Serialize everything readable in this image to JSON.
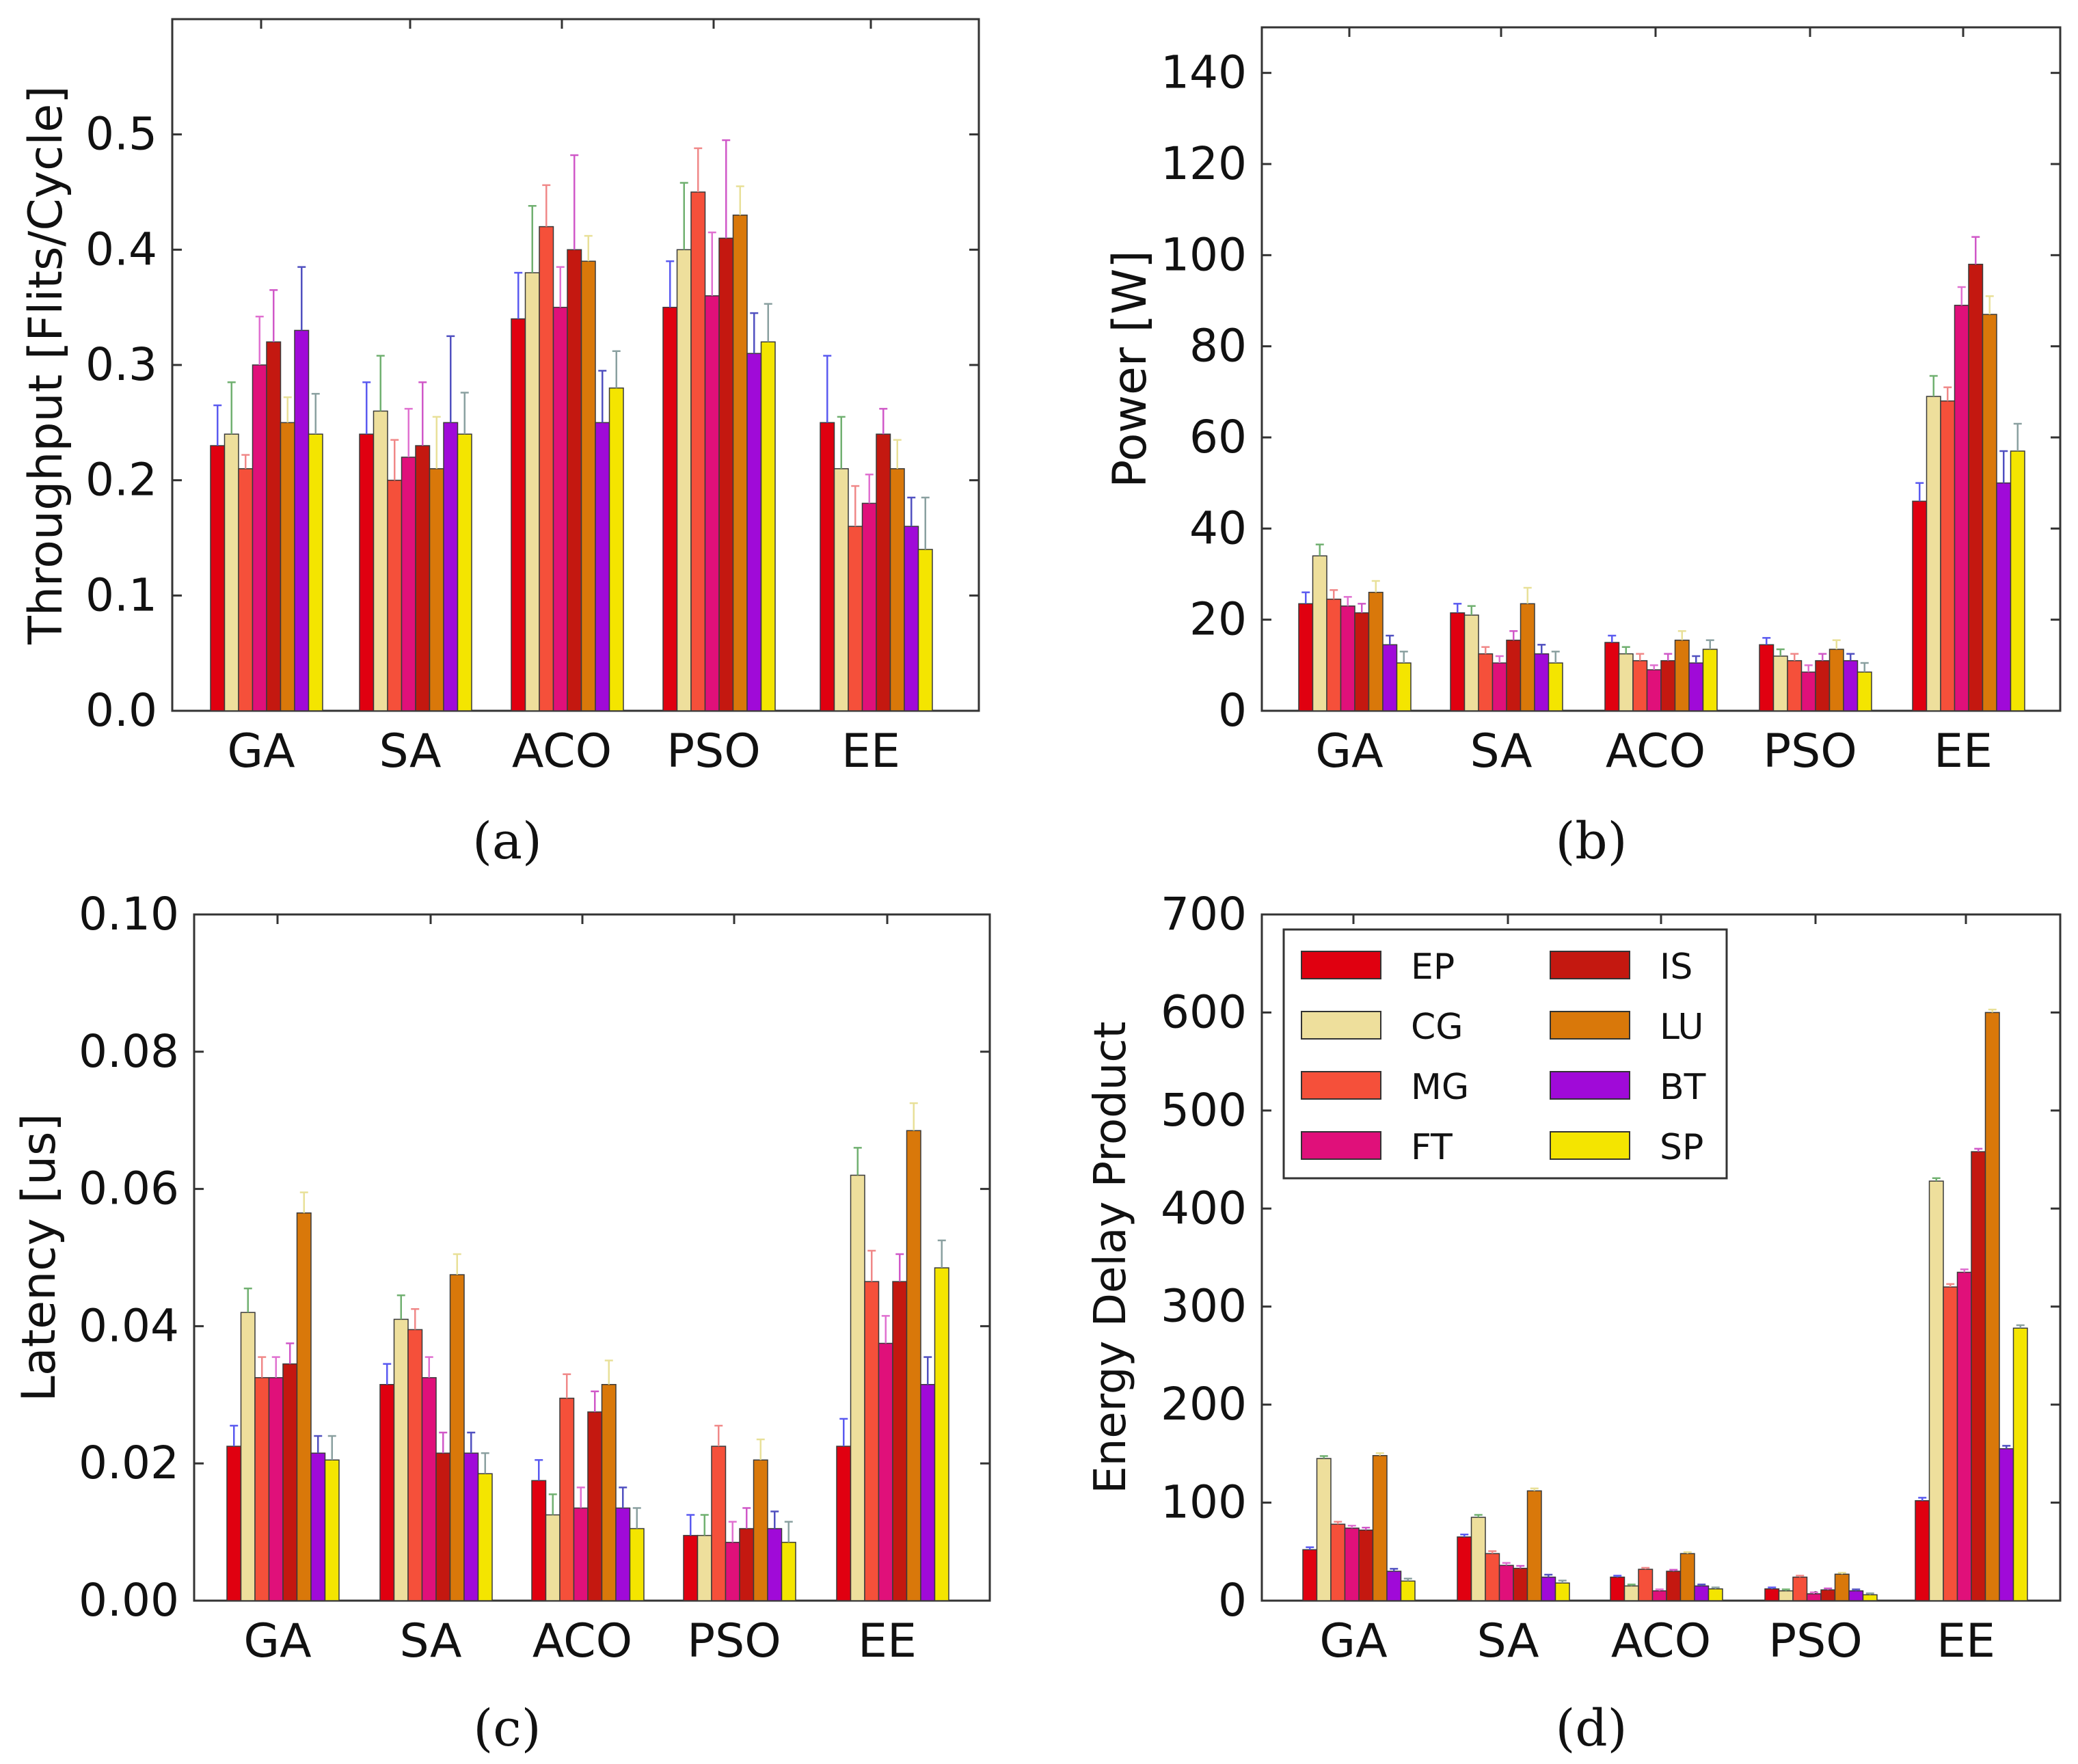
{
  "figure": {
    "panels": [
      "(a)",
      "(b)",
      "(c)",
      "(d)"
    ]
  },
  "colors": {
    "EP": "#e00010",
    "CG": "#eedf9c",
    "MG": "#f5503a",
    "FT": "#e0107a",
    "IS": "#c41810",
    "LU": "#d9780a",
    "BT": "#a00ad8",
    "SP": "#f4e500"
  },
  "chart_data": [
    {
      "type": "bar",
      "panel_label": "(a)",
      "title": "",
      "xlabel": "",
      "ylabel": "Throughput [Flits/Cycle]",
      "categories": [
        "GA",
        "SA",
        "ACO",
        "PSO",
        "EE"
      ],
      "ylim": [
        0,
        0.6
      ],
      "yticks": [
        "0.0",
        "0.1",
        "0.2",
        "0.3",
        "0.4",
        "0.5"
      ],
      "legend": null,
      "series": [
        {
          "name": "EP",
          "values": [
            0.23,
            0.24,
            0.34,
            0.35,
            0.25
          ],
          "errors": [
            0.035,
            0.045,
            0.04,
            0.04,
            0.058
          ]
        },
        {
          "name": "CG",
          "values": [
            0.24,
            0.26,
            0.38,
            0.4,
            0.21
          ],
          "errors": [
            0.045,
            0.048,
            0.058,
            0.058,
            0.045
          ]
        },
        {
          "name": "MG",
          "values": [
            0.21,
            0.2,
            0.42,
            0.45,
            0.16
          ],
          "errors": [
            0.012,
            0.035,
            0.036,
            0.038,
            0.035
          ]
        },
        {
          "name": "FT",
          "values": [
            0.3,
            0.22,
            0.35,
            0.36,
            0.18
          ],
          "errors": [
            0.042,
            0.042,
            0.035,
            0.055,
            0.025
          ]
        },
        {
          "name": "IS",
          "values": [
            0.32,
            0.23,
            0.4,
            0.41,
            0.24
          ],
          "errors": [
            0.045,
            0.055,
            0.082,
            0.085,
            0.022
          ]
        },
        {
          "name": "LU",
          "values": [
            0.25,
            0.21,
            0.39,
            0.43,
            0.21
          ],
          "errors": [
            0.022,
            0.045,
            0.022,
            0.025,
            0.025
          ]
        },
        {
          "name": "BT",
          "values": [
            0.33,
            0.25,
            0.25,
            0.31,
            0.16
          ],
          "errors": [
            0.055,
            0.075,
            0.045,
            0.035,
            0.025
          ]
        },
        {
          "name": "SP",
          "values": [
            0.24,
            0.24,
            0.28,
            0.32,
            0.14
          ],
          "errors": [
            0.035,
            0.036,
            0.032,
            0.033,
            0.045
          ]
        }
      ]
    },
    {
      "type": "bar",
      "panel_label": "(b)",
      "title": "",
      "xlabel": "",
      "ylabel": "Power [W]",
      "categories": [
        "GA",
        "SA",
        "ACO",
        "PSO",
        "EE"
      ],
      "ylim": [
        0,
        150
      ],
      "yticks": [
        "0",
        "20",
        "40",
        "60",
        "80",
        "100",
        "120",
        "140"
      ],
      "legend": null,
      "series": [
        {
          "name": "EP",
          "values": [
            23.5,
            21.5,
            15,
            14.5,
            46
          ],
          "errors": [
            2.5,
            2.0,
            1.5,
            1.5,
            4.0
          ]
        },
        {
          "name": "CG",
          "values": [
            34,
            21,
            12.5,
            12,
            69
          ],
          "errors": [
            2.5,
            2.0,
            1.5,
            1.5,
            4.5
          ]
        },
        {
          "name": "MG",
          "values": [
            24.5,
            12.5,
            11,
            11,
            68
          ],
          "errors": [
            2.0,
            1.5,
            1.5,
            1.5,
            3.0
          ]
        },
        {
          "name": "FT",
          "values": [
            23,
            10.5,
            9,
            8.5,
            89
          ],
          "errors": [
            2.0,
            1.5,
            1.0,
            1.5,
            4.0
          ]
        },
        {
          "name": "IS",
          "values": [
            21.5,
            15.5,
            11,
            11,
            98
          ],
          "errors": [
            2.0,
            2.0,
            1.5,
            1.5,
            6.0
          ]
        },
        {
          "name": "LU",
          "values": [
            26,
            23.5,
            15.5,
            13.5,
            87
          ],
          "errors": [
            2.5,
            3.5,
            2.0,
            2.0,
            4.0
          ]
        },
        {
          "name": "BT",
          "values": [
            14.5,
            12.5,
            10.5,
            11,
            50
          ],
          "errors": [
            2.0,
            2.0,
            1.5,
            1.5,
            7.0
          ]
        },
        {
          "name": "SP",
          "values": [
            10.5,
            10.5,
            13.5,
            8.5,
            57
          ],
          "errors": [
            2.5,
            2.5,
            2.0,
            2.0,
            6.0
          ]
        }
      ]
    },
    {
      "type": "bar",
      "panel_label": "(c)",
      "title": "",
      "xlabel": "",
      "ylabel": "Latency [us]",
      "categories": [
        "GA",
        "SA",
        "ACO",
        "PSO",
        "EE"
      ],
      "ylim": [
        0,
        0.1
      ],
      "yticks": [
        "0.00",
        "0.02",
        "0.04",
        "0.06",
        "0.08",
        "0.10"
      ],
      "legend": null,
      "series": [
        {
          "name": "EP",
          "values": [
            0.0225,
            0.0315,
            0.0175,
            0.0095,
            0.0225
          ],
          "errors": [
            0.003,
            0.003,
            0.003,
            0.003,
            0.004
          ]
        },
        {
          "name": "CG",
          "values": [
            0.042,
            0.041,
            0.0125,
            0.0095,
            0.062
          ],
          "errors": [
            0.0035,
            0.0035,
            0.003,
            0.003,
            0.004
          ]
        },
        {
          "name": "MG",
          "values": [
            0.0325,
            0.0395,
            0.0295,
            0.0225,
            0.0465
          ],
          "errors": [
            0.003,
            0.003,
            0.0035,
            0.003,
            0.0045
          ]
        },
        {
          "name": "FT",
          "values": [
            0.0325,
            0.0325,
            0.0135,
            0.0085,
            0.0375
          ],
          "errors": [
            0.003,
            0.003,
            0.003,
            0.003,
            0.004
          ]
        },
        {
          "name": "IS",
          "values": [
            0.0345,
            0.0215,
            0.0275,
            0.0105,
            0.0465
          ],
          "errors": [
            0.003,
            0.003,
            0.003,
            0.003,
            0.004
          ]
        },
        {
          "name": "LU",
          "values": [
            0.0565,
            0.0475,
            0.0315,
            0.0205,
            0.0685
          ],
          "errors": [
            0.003,
            0.003,
            0.0035,
            0.003,
            0.004
          ]
        },
        {
          "name": "BT",
          "values": [
            0.0215,
            0.0215,
            0.0135,
            0.0105,
            0.0315
          ],
          "errors": [
            0.0025,
            0.003,
            0.003,
            0.0025,
            0.004
          ]
        },
        {
          "name": "SP",
          "values": [
            0.0205,
            0.0185,
            0.0105,
            0.0085,
            0.0485
          ],
          "errors": [
            0.0035,
            0.003,
            0.003,
            0.003,
            0.004
          ]
        }
      ]
    },
    {
      "type": "bar",
      "panel_label": "(d)",
      "title": "",
      "xlabel": "",
      "ylabel": "Energy Delay Product",
      "categories": [
        "GA",
        "SA",
        "ACO",
        "PSO",
        "EE"
      ],
      "ylim": [
        0,
        700
      ],
      "yticks": [
        "0",
        "100",
        "200",
        "300",
        "400",
        "500",
        "600",
        "700"
      ],
      "legend": {
        "position": "upper-left",
        "columns": 2,
        "entries": [
          "EP",
          "CG",
          "MG",
          "FT",
          "IS",
          "LU",
          "BT",
          "SP"
        ]
      },
      "series": [
        {
          "name": "EP",
          "values": [
            52,
            65,
            24,
            12,
            102
          ],
          "errors": [
            2.5,
            2.5,
            1.5,
            1.5,
            3.0
          ]
        },
        {
          "name": "CG",
          "values": [
            145,
            85,
            15,
            10,
            428
          ],
          "errors": [
            2.5,
            2.5,
            1.5,
            1.5,
            3.0
          ]
        },
        {
          "name": "MG",
          "values": [
            78,
            48,
            32,
            24,
            320
          ],
          "errors": [
            2.5,
            2.5,
            1.5,
            1.5,
            3.0
          ]
        },
        {
          "name": "FT",
          "values": [
            74,
            36,
            10,
            7,
            335
          ],
          "errors": [
            2.5,
            2.5,
            1.5,
            1.5,
            3.0
          ]
        },
        {
          "name": "IS",
          "values": [
            72,
            33,
            30,
            11,
            458
          ],
          "errors": [
            2.5,
            2.5,
            1.5,
            1.5,
            3.0
          ]
        },
        {
          "name": "LU",
          "values": [
            148,
            112,
            48,
            27,
            600
          ],
          "errors": [
            2.5,
            2.5,
            1.5,
            1.5,
            3.0
          ]
        },
        {
          "name": "BT",
          "values": [
            30,
            24,
            15,
            10,
            155
          ],
          "errors": [
            2.5,
            2.5,
            1.5,
            1.5,
            3.0
          ]
        },
        {
          "name": "SP",
          "values": [
            20,
            18,
            12,
            6,
            278
          ],
          "errors": [
            2.5,
            2.5,
            1.5,
            1.5,
            3.0
          ]
        }
      ]
    }
  ]
}
